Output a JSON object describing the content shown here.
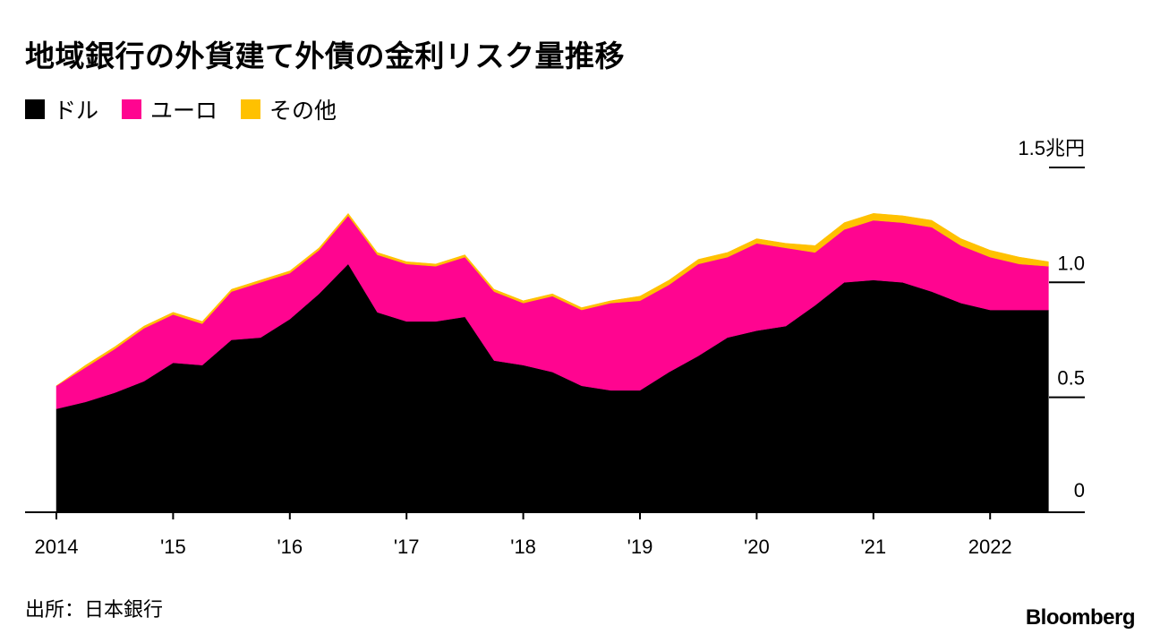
{
  "title": "地域銀行の外貨建て外債の金利リスク量推移",
  "legend": [
    {
      "label": "ドル",
      "color": "#000000"
    },
    {
      "label": "ユーロ",
      "color": "#ff0590"
    },
    {
      "label": "その他",
      "color": "#ffc100"
    }
  ],
  "source": "出所：日本銀行",
  "logo": "Bloomberg",
  "chart_data": {
    "type": "area",
    "stacked": true,
    "unit_label": "1.5兆円",
    "ylim": [
      0,
      1.5
    ],
    "yticks": [
      {
        "value": 0,
        "label": "0"
      },
      {
        "value": 0.5,
        "label": "0.5"
      },
      {
        "value": 1.0,
        "label": "1.0"
      },
      {
        "value": 1.5,
        "label": "1.5兆円"
      }
    ],
    "xticks": [
      {
        "x": 2014.0,
        "label": "2014"
      },
      {
        "x": 2015.0,
        "label": "'15"
      },
      {
        "x": 2016.0,
        "label": "'16"
      },
      {
        "x": 2017.0,
        "label": "'17"
      },
      {
        "x": 2018.0,
        "label": "'18"
      },
      {
        "x": 2019.0,
        "label": "'19"
      },
      {
        "x": 2020.0,
        "label": "'20"
      },
      {
        "x": 2021.0,
        "label": "'21"
      },
      {
        "x": 2022.0,
        "label": "2022"
      }
    ],
    "x": [
      2014.0,
      2014.25,
      2014.5,
      2014.75,
      2015.0,
      2015.25,
      2015.5,
      2015.75,
      2016.0,
      2016.25,
      2016.5,
      2016.75,
      2017.0,
      2017.25,
      2017.5,
      2017.75,
      2018.0,
      2018.25,
      2018.5,
      2018.75,
      2019.0,
      2019.25,
      2019.5,
      2019.75,
      2020.0,
      2020.25,
      2020.5,
      2020.75,
      2021.0,
      2021.25,
      2021.5,
      2021.75,
      2022.0,
      2022.25,
      2022.5
    ],
    "series": [
      {
        "name": "ドル",
        "color": "#000000",
        "values": [
          0.45,
          0.48,
          0.52,
          0.57,
          0.65,
          0.64,
          0.75,
          0.76,
          0.84,
          0.95,
          1.08,
          0.87,
          0.83,
          0.83,
          0.85,
          0.66,
          0.64,
          0.61,
          0.55,
          0.53,
          0.53,
          0.61,
          0.68,
          0.76,
          0.79,
          0.81,
          0.9,
          1.0,
          1.01,
          1.0,
          0.96,
          0.91,
          0.88,
          0.88,
          0.88
        ]
      },
      {
        "name": "ユーロ",
        "color": "#ff0590",
        "values": [
          0.1,
          0.15,
          0.19,
          0.23,
          0.21,
          0.18,
          0.21,
          0.24,
          0.2,
          0.19,
          0.21,
          0.25,
          0.25,
          0.24,
          0.26,
          0.3,
          0.27,
          0.33,
          0.33,
          0.38,
          0.39,
          0.38,
          0.4,
          0.35,
          0.38,
          0.34,
          0.23,
          0.23,
          0.26,
          0.26,
          0.28,
          0.25,
          0.23,
          0.2,
          0.19
        ]
      },
      {
        "name": "その他",
        "color": "#ffc100",
        "values": [
          0.0,
          0.01,
          0.01,
          0.01,
          0.01,
          0.01,
          0.01,
          0.01,
          0.01,
          0.01,
          0.01,
          0.01,
          0.01,
          0.01,
          0.01,
          0.01,
          0.01,
          0.01,
          0.01,
          0.01,
          0.02,
          0.02,
          0.02,
          0.02,
          0.02,
          0.02,
          0.03,
          0.03,
          0.03,
          0.03,
          0.03,
          0.03,
          0.03,
          0.03,
          0.02
        ]
      }
    ]
  }
}
